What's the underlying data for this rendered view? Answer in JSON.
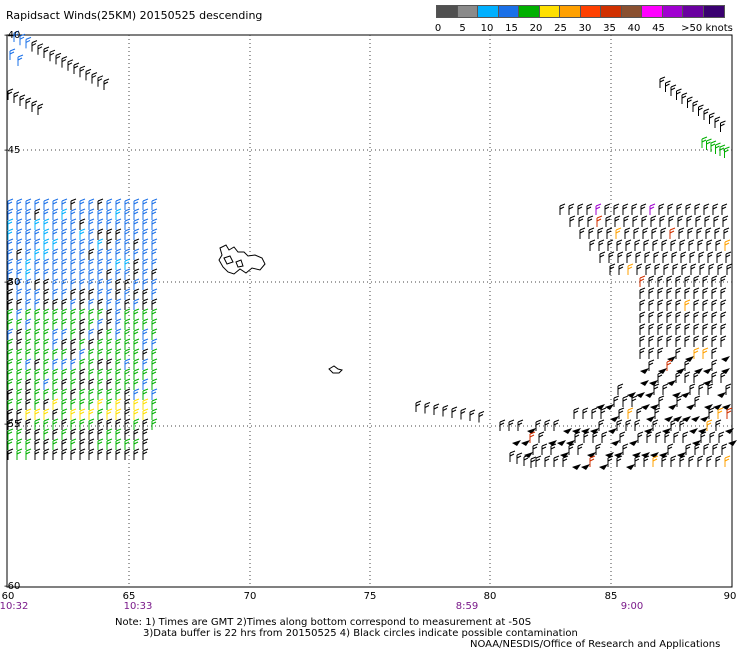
{
  "title": "Rapidsact Winds(25KM) 20150525 descending",
  "legend": {
    "labels": [
      "0",
      "5",
      "10",
      "15",
      "20",
      "25",
      "30",
      "35",
      "40",
      "45",
      ">50 knots"
    ],
    "colors": [
      "#505050",
      "#8a8a8a",
      "#00b0ff",
      "#1a70e8",
      "#00b000",
      "#ffe000",
      "#ffa000",
      "#ff4000",
      "#d03000",
      "#8a5030",
      "#ff00ff",
      "#a000d0",
      "#6a00a0",
      "#3a0070"
    ]
  },
  "axes": {
    "x_ticks": [
      "60",
      "65",
      "70",
      "75",
      "80",
      "85",
      "90"
    ],
    "y_ticks": [
      "-45",
      "-50",
      "-55",
      "-60"
    ],
    "y_top_label": "-40",
    "times": [
      "10:32",
      "10:33",
      "8:59",
      "9:00"
    ]
  },
  "notes": {
    "line1": "Note: 1) Times are GMT 2)Times along bottom correspond to measurement at -50S",
    "line2": "3)Data buffer is 22 hrs from 20150525 4) Black circles indicate possible contamination",
    "credit": "NOAA/NESDIS/Office of Research and Applications"
  },
  "map": {
    "lon_range": [
      60,
      90
    ],
    "lat_range": [
      -60,
      -40
    ],
    "islands": [
      "Kerguelen",
      "Heard"
    ]
  }
}
